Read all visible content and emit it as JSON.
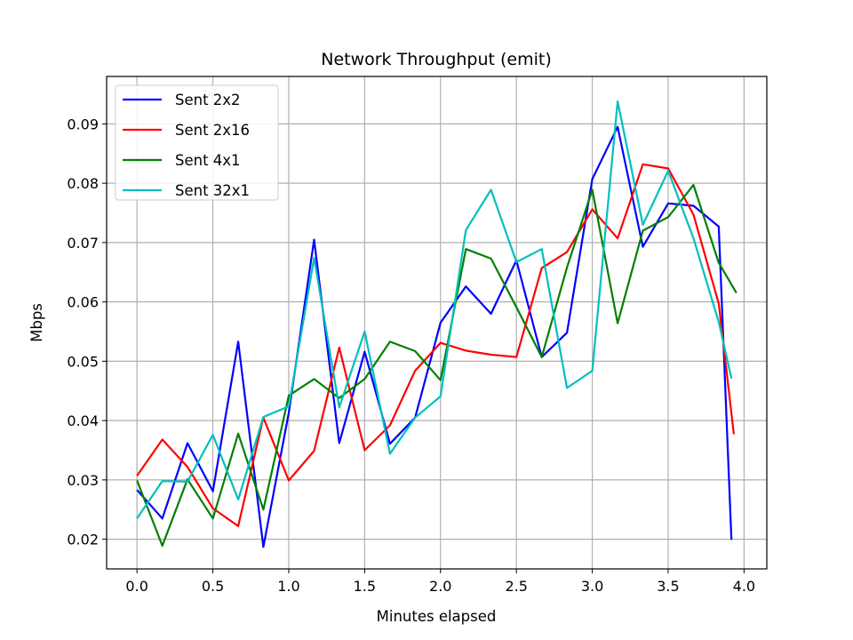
{
  "chart_data": {
    "type": "line",
    "title": "Network Throughput (emit)",
    "xlabel": "Minutes elapsed",
    "ylabel": "Mbps",
    "xlim": [
      -0.2,
      4.15
    ],
    "ylim": [
      0.015,
      0.098
    ],
    "xticks": [
      0.0,
      0.5,
      1.0,
      1.5,
      2.0,
      2.5,
      3.0,
      3.5,
      4.0
    ],
    "xtick_labels": [
      "0.0",
      "0.5",
      "1.0",
      "1.5",
      "2.0",
      "2.5",
      "3.0",
      "3.5",
      "4.0"
    ],
    "yticks": [
      0.02,
      0.03,
      0.04,
      0.05,
      0.06,
      0.07,
      0.08,
      0.09
    ],
    "ytick_labels": [
      "0.02",
      "0.03",
      "0.04",
      "0.05",
      "0.06",
      "0.07",
      "0.08",
      "0.09"
    ],
    "grid": true,
    "legend_position": "top-left",
    "series": [
      {
        "name": "Sent 2x2",
        "color": "#0000ff",
        "x": [
          0.0,
          0.167,
          0.333,
          0.5,
          0.667,
          0.833,
          1.0,
          1.167,
          1.333,
          1.5,
          1.667,
          1.833,
          2.0,
          2.167,
          2.333,
          2.5,
          2.667,
          2.833,
          3.0,
          3.167,
          3.333,
          3.5,
          3.667,
          3.833,
          3.917
        ],
        "values": [
          0.0283,
          0.0235,
          0.0362,
          0.0281,
          0.0533,
          0.0187,
          0.0413,
          0.0705,
          0.0362,
          0.0516,
          0.0361,
          0.0405,
          0.0565,
          0.0626,
          0.058,
          0.067,
          0.0507,
          0.0548,
          0.0807,
          0.0895,
          0.0693,
          0.0766,
          0.0762,
          0.0727,
          0.0199
        ]
      },
      {
        "name": "Sent 2x16",
        "color": "#ff0000",
        "x": [
          0.0,
          0.167,
          0.333,
          0.5,
          0.667,
          0.833,
          1.0,
          1.167,
          1.333,
          1.5,
          1.667,
          1.833,
          2.0,
          2.167,
          2.333,
          2.5,
          2.667,
          2.833,
          3.0,
          3.167,
          3.333,
          3.5,
          3.667,
          3.833,
          3.933
        ],
        "values": [
          0.0307,
          0.0368,
          0.0322,
          0.0252,
          0.0222,
          0.0405,
          0.0299,
          0.0349,
          0.0523,
          0.035,
          0.0392,
          0.0484,
          0.0531,
          0.0518,
          0.0511,
          0.0507,
          0.0657,
          0.0684,
          0.0756,
          0.0707,
          0.0832,
          0.0825,
          0.0747,
          0.0597,
          0.0377
        ]
      },
      {
        "name": "Sent 4x1",
        "color": "#008000",
        "x": [
          0.0,
          0.167,
          0.333,
          0.5,
          0.667,
          0.833,
          1.0,
          1.167,
          1.333,
          1.5,
          1.667,
          1.833,
          2.0,
          2.167,
          2.333,
          2.5,
          2.667,
          2.833,
          3.0,
          3.167,
          3.333,
          3.5,
          3.667,
          3.833,
          3.95
        ],
        "values": [
          0.0299,
          0.0189,
          0.0301,
          0.0235,
          0.0378,
          0.025,
          0.0442,
          0.047,
          0.0438,
          0.047,
          0.0533,
          0.0517,
          0.0468,
          0.0689,
          0.0673,
          0.0591,
          0.0507,
          0.0658,
          0.0789,
          0.0564,
          0.072,
          0.0743,
          0.0797,
          0.0666,
          0.0615
        ]
      },
      {
        "name": "Sent 32x1",
        "color": "#00bfbf",
        "x": [
          0.0,
          0.167,
          0.333,
          0.5,
          0.667,
          0.833,
          1.0,
          1.167,
          1.333,
          1.5,
          1.667,
          1.833,
          2.0,
          2.167,
          2.333,
          2.5,
          2.667,
          2.833,
          3.0,
          3.167,
          3.333,
          3.5,
          3.667,
          3.833,
          3.917
        ],
        "values": [
          0.0235,
          0.0298,
          0.0297,
          0.0376,
          0.0267,
          0.0406,
          0.0424,
          0.0674,
          0.0422,
          0.055,
          0.0344,
          0.0405,
          0.0441,
          0.0721,
          0.0789,
          0.0667,
          0.0689,
          0.0455,
          0.0484,
          0.0938,
          0.073,
          0.0821,
          0.0707,
          0.0566,
          0.0471
        ]
      }
    ]
  }
}
